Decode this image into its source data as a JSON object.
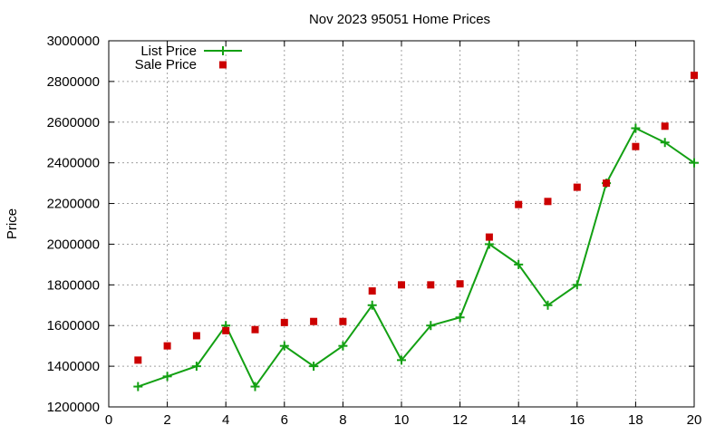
{
  "chart_data": {
    "type": "line",
    "title": "Nov 2023 95051 Home Prices",
    "xlabel": "",
    "ylabel": "Price",
    "xlim": [
      0,
      20
    ],
    "ylim": [
      1200000,
      3000000
    ],
    "xticks": [
      0,
      2,
      4,
      6,
      8,
      10,
      12,
      14,
      16,
      18,
      20
    ],
    "yticks": [
      1200000,
      1400000,
      1600000,
      1800000,
      2000000,
      2200000,
      2400000,
      2600000,
      2800000,
      3000000
    ],
    "xtick_labels": [
      "0",
      "2",
      "4",
      "6",
      "8",
      "10",
      "12",
      "14",
      "16",
      "18",
      "20"
    ],
    "ytick_labels": [
      "1200000",
      "1400000",
      "1600000",
      "1800000",
      "2000000",
      "2200000",
      "2400000",
      "2600000",
      "2800000",
      "3000000"
    ],
    "grid": true,
    "legend_position": "top-left",
    "x": [
      1,
      2,
      3,
      4,
      5,
      6,
      7,
      8,
      9,
      10,
      11,
      12,
      13,
      14,
      15,
      16,
      17,
      18,
      19,
      20
    ],
    "series": [
      {
        "name": "List Price",
        "style": "line-with-plus-markers",
        "color": "#13a013",
        "values": [
          1300000,
          1350000,
          1400000,
          1600000,
          1300000,
          1500000,
          1400000,
          1500000,
          1700000,
          1430000,
          1600000,
          1640000,
          2000000,
          1900000,
          1700000,
          1800000,
          2300000,
          2570000,
          2500000,
          2400000
        ]
      },
      {
        "name": "Sale Price",
        "style": "square-markers",
        "color": "#cc0000",
        "values": [
          1430000,
          1500000,
          1550000,
          1575000,
          1580000,
          1615000,
          1620000,
          1620000,
          1770000,
          1800000,
          1800000,
          1805000,
          2035000,
          2195000,
          2210000,
          2280000,
          2300000,
          2480000,
          2580000,
          2830000
        ]
      }
    ]
  }
}
